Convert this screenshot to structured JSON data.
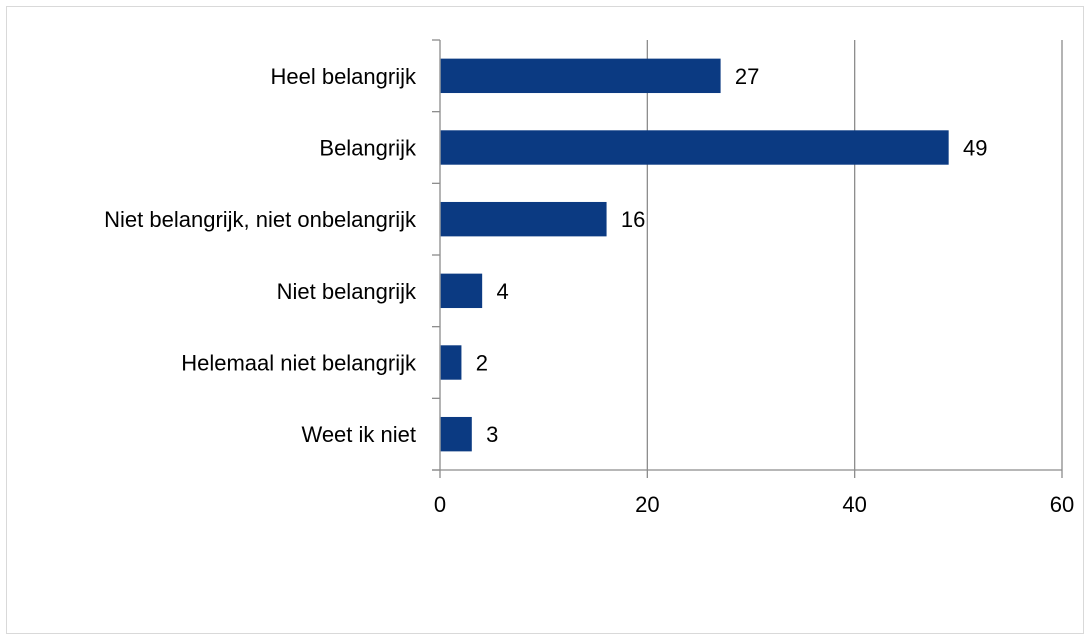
{
  "chart_data": {
    "type": "bar",
    "orientation": "horizontal",
    "categories": [
      "Heel belangrijk",
      "Belangrijk",
      "Niet belangrijk, niet onbelangrijk",
      "Niet belangrijk",
      "Helemaal niet belangrijk",
      "Weet ik niet"
    ],
    "values": [
      27,
      49,
      16,
      4,
      2,
      3
    ],
    "xlim": [
      0,
      60
    ],
    "x_ticks": [
      "0",
      "20",
      "40",
      "60"
    ],
    "data_labels": [
      "27",
      "49",
      "16",
      "4",
      "2",
      "3"
    ],
    "title": "",
    "xlabel": "",
    "ylabel": "",
    "grid": "vertical",
    "legend": "none",
    "colors": {
      "bar": "#0b3a82",
      "grid": "#8c8c8c",
      "axis": "#8c8c8c",
      "frame": "#d9d9d9"
    }
  }
}
